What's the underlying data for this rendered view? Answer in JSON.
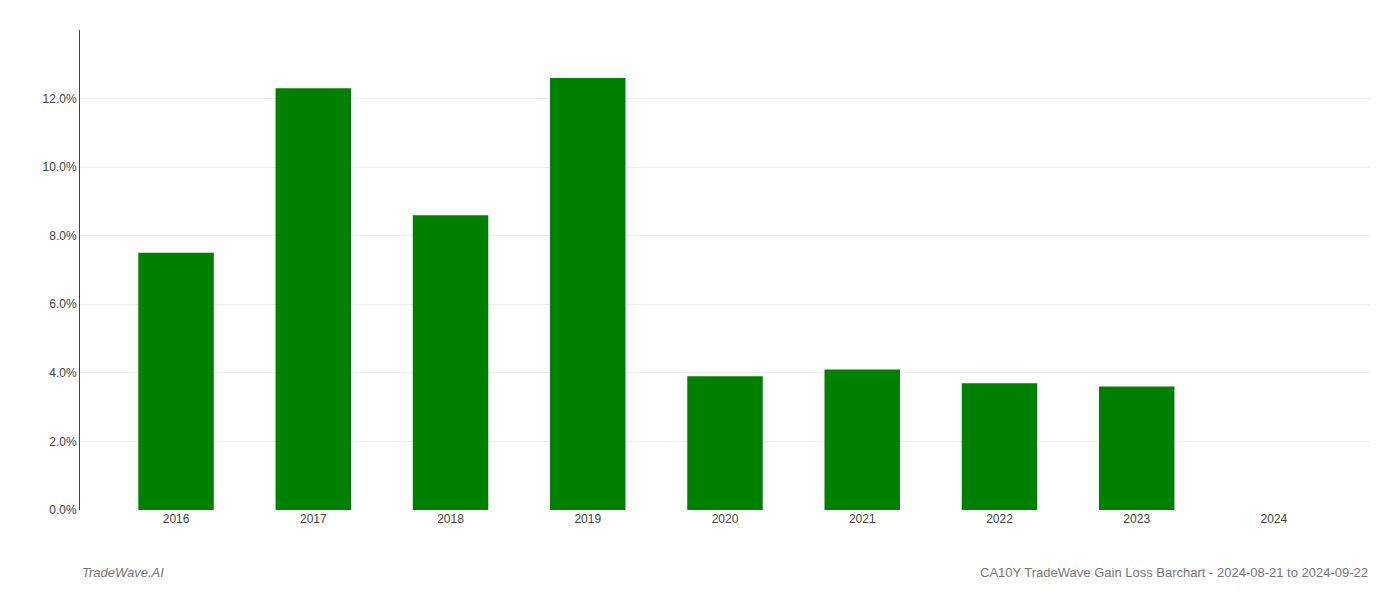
{
  "chart_data": {
    "type": "bar",
    "categories": [
      "2016",
      "2017",
      "2018",
      "2019",
      "2020",
      "2021",
      "2022",
      "2023",
      "2024"
    ],
    "values": [
      0.075,
      0.123,
      0.086,
      0.126,
      0.039,
      0.041,
      0.037,
      0.036,
      null
    ],
    "color": "#008000",
    "ylim": [
      0,
      0.14
    ],
    "yticks": [
      {
        "value": 0.0,
        "label": "0.0%"
      },
      {
        "value": 0.02,
        "label": "2.0%"
      },
      {
        "value": 0.04,
        "label": "4.0%"
      },
      {
        "value": 0.06,
        "label": "6.0%"
      },
      {
        "value": 0.08,
        "label": "8.0%"
      },
      {
        "value": 0.1,
        "label": "10.0%"
      },
      {
        "value": 0.12,
        "label": "12.0%"
      }
    ],
    "grid": true,
    "annotations": [
      "TradeWave.AI",
      "CA10Y TradeWave Gain Loss Barchart - 2024-08-21 to 2024-09-22"
    ]
  }
}
